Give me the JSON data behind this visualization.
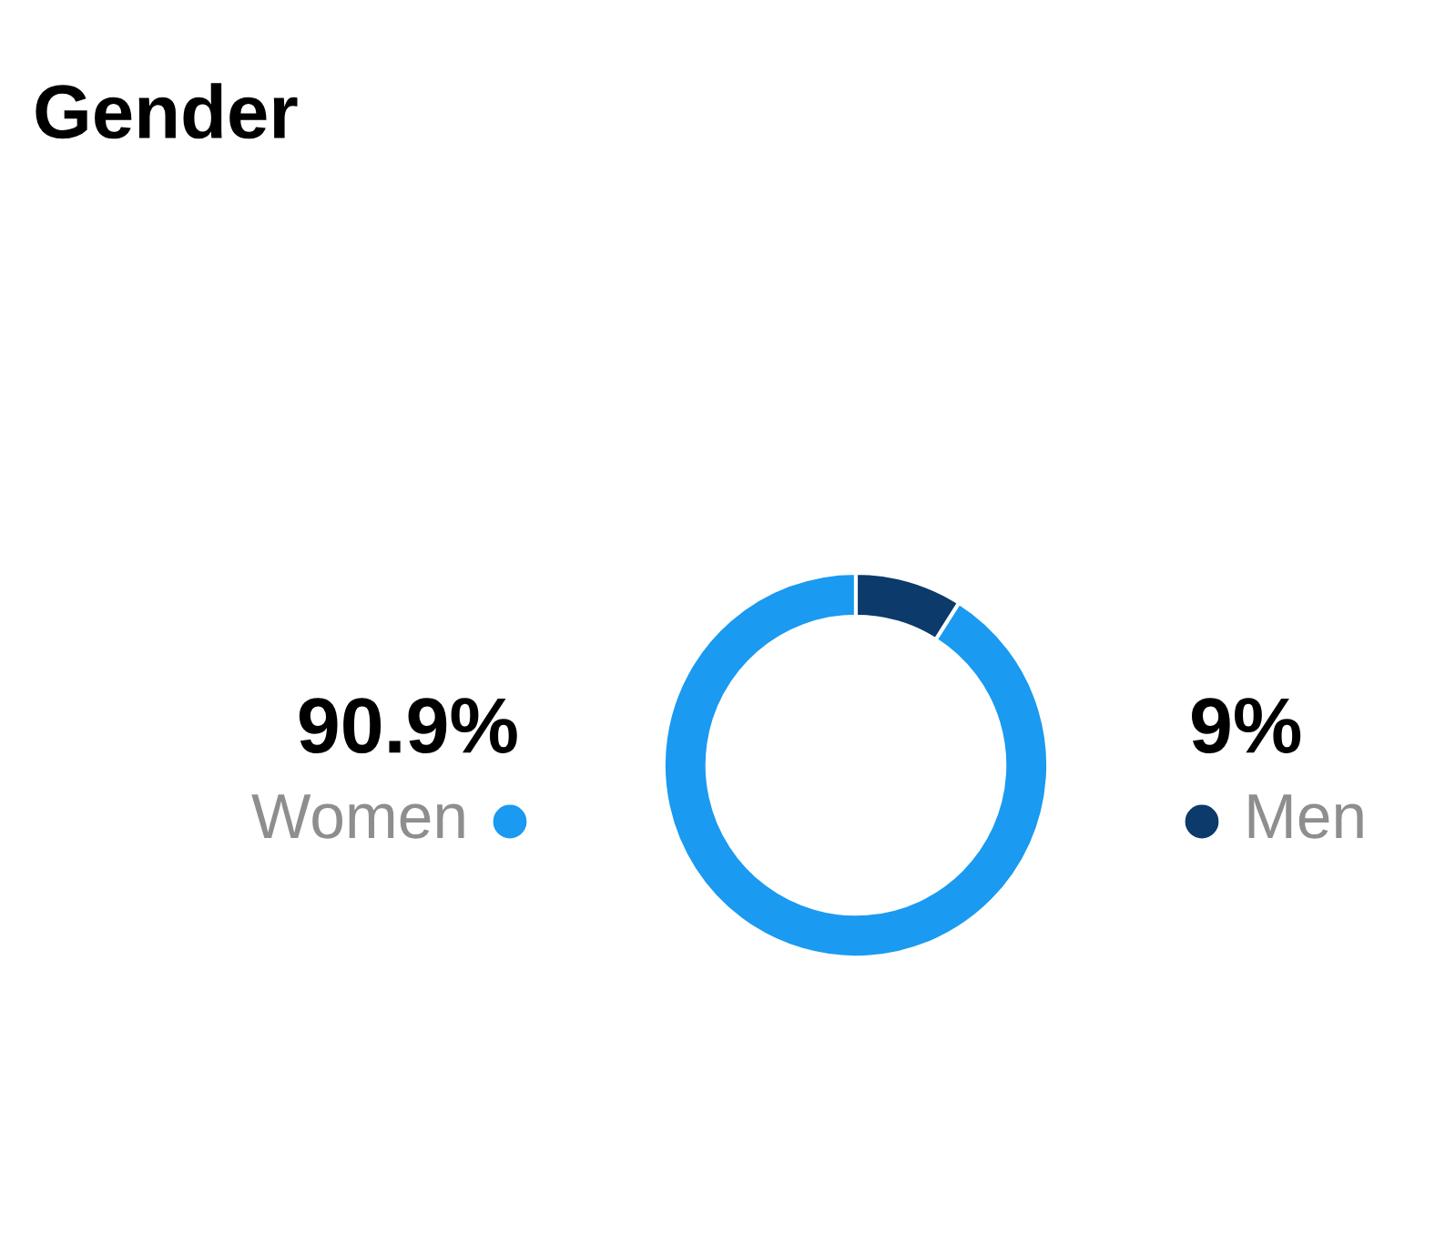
{
  "chart_data": {
    "type": "donut",
    "title": "Gender",
    "categories": [
      "Women",
      "Men"
    ],
    "values": [
      90.9,
      9
    ],
    "colors": [
      "#1a9af0",
      "#0b3a6b"
    ],
    "value_labels": [
      "90.9%",
      "9%"
    ],
    "legend": "right"
  }
}
